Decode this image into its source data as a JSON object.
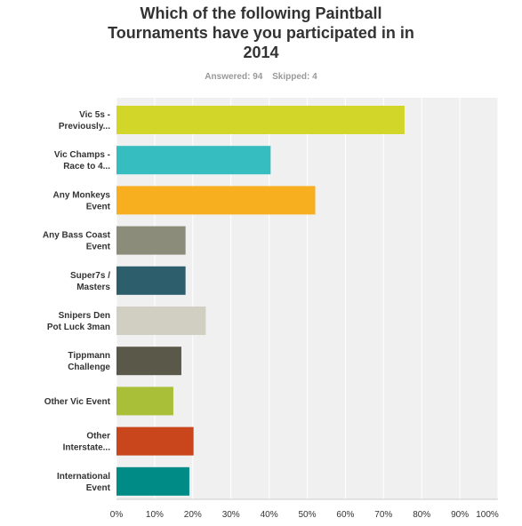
{
  "survey": {
    "title_lines": [
      "Which of the following Paintball",
      "Tournaments have you participated in in",
      "2014"
    ],
    "answered": "Answered: 94",
    "skipped": "Skipped: 4"
  },
  "chart_data": {
    "type": "bar",
    "orientation": "horizontal",
    "categories": [
      [
        "Vic 5s -",
        "Previously..."
      ],
      [
        "Vic Champs -",
        "Race to 4..."
      ],
      [
        "Any Monkeys",
        "Event"
      ],
      [
        "Any Bass Coast",
        "Event"
      ],
      [
        "Super7s /",
        "Masters"
      ],
      [
        "Snipers Den",
        "Pot Luck 3man"
      ],
      [
        "Tippmann",
        "Challenge"
      ],
      [
        "Other Vic Event"
      ],
      [
        "Other",
        "Interstate..."
      ],
      [
        "International",
        "Event"
      ]
    ],
    "values": [
      75.5,
      40.4,
      52.1,
      18.1,
      18.1,
      23.4,
      17.0,
      14.9,
      20.2,
      19.1
    ],
    "colors": [
      "#d1d628",
      "#35bdbf",
      "#f7ae1f",
      "#8b8c7a",
      "#2c5e6c",
      "#d0cfc1",
      "#5a5848",
      "#a9bf37",
      "#c9461d",
      "#008b87"
    ],
    "xlim": [
      0,
      100
    ],
    "xticks": [
      "0%",
      "10%",
      "20%",
      "30%",
      "40%",
      "50%",
      "60%",
      "70%",
      "80%",
      "90%",
      "100%"
    ],
    "grid": true
  }
}
